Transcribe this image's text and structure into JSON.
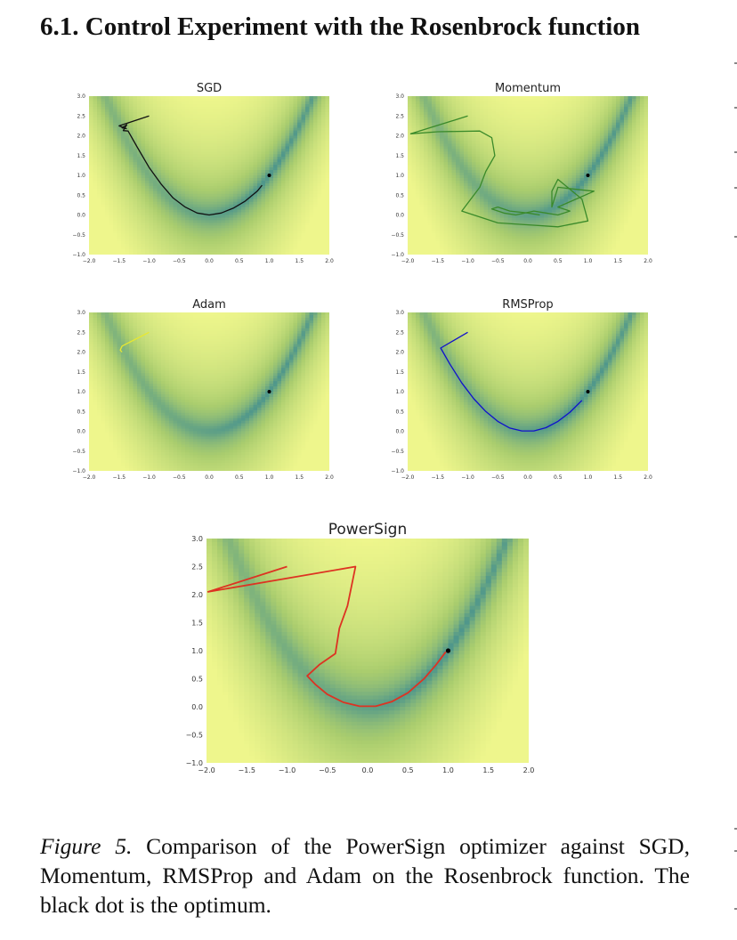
{
  "section": {
    "title": "6.1. Control Experiment with the Rosenbrock function"
  },
  "figure": {
    "caption_lead": "Figure 5.",
    "caption_text": " Comparison of the PowerSign optimizer against SGD, Momentum, RMSProp and Adam on the Rosenbrock function. The black dot is the optimum."
  },
  "chart_data": [
    {
      "type": "line",
      "title": "SGD",
      "color": "#111111",
      "xlim": [
        -2.0,
        2.0
      ],
      "ylim": [
        -1.0,
        3.0
      ],
      "xticks": [
        "−2.0",
        "−1.5",
        "−1.0",
        "−0.5",
        "0.0",
        "0.5",
        "1.0",
        "1.5",
        "2.0"
      ],
      "yticks": [
        "−1.0",
        "−0.5",
        "0.0",
        "0.5",
        "1.0",
        "1.5",
        "2.0",
        "2.5",
        "3.0"
      ],
      "optimum": [
        1.0,
        1.0
      ],
      "x": [
        -1.0,
        -1.5,
        -1.38,
        -1.45,
        -1.37,
        -1.43,
        -1.35,
        -1.2,
        -1.0,
        -0.8,
        -0.6,
        -0.4,
        -0.2,
        0.0,
        0.2,
        0.4,
        0.6,
        0.8,
        0.88
      ],
      "y": [
        2.5,
        2.25,
        2.18,
        2.2,
        2.28,
        2.13,
        2.12,
        1.72,
        1.2,
        0.78,
        0.43,
        0.2,
        0.05,
        0.0,
        0.05,
        0.17,
        0.35,
        0.6,
        0.75
      ]
    },
    {
      "type": "line",
      "title": "Momentum",
      "color": "#3a8a2a",
      "xlim": [
        -2.0,
        2.0
      ],
      "ylim": [
        -1.0,
        3.0
      ],
      "xticks": [
        "−2.0",
        "−1.5",
        "−1.0",
        "−0.5",
        "0.0",
        "0.5",
        "1.0",
        "1.5",
        "2.0"
      ],
      "yticks": [
        "−1.0",
        "−0.5",
        "0.0",
        "0.5",
        "1.0",
        "1.5",
        "2.0",
        "2.5",
        "3.0"
      ],
      "optimum": [
        1.0,
        1.0
      ],
      "x": [
        -1.0,
        -1.95,
        -1.5,
        -0.8,
        -0.6,
        -0.55,
        -0.7,
        -0.8,
        -1.1,
        -0.5,
        0.5,
        1.0,
        0.9,
        0.5,
        0.4,
        0.4,
        0.5,
        1.1,
        0.5,
        0.7,
        0.5,
        0.3,
        0.1,
        -0.2,
        -0.4,
        -0.6,
        -0.5,
        -0.3,
        0.0,
        0.2
      ],
      "y": [
        2.5,
        2.05,
        2.1,
        2.12,
        1.95,
        1.5,
        1.1,
        0.7,
        0.1,
        -0.2,
        -0.3,
        -0.15,
        0.4,
        0.9,
        0.6,
        0.2,
        0.7,
        0.6,
        0.2,
        0.1,
        0.0,
        0.05,
        0.1,
        0.0,
        0.05,
        0.15,
        0.2,
        0.1,
        0.05,
        0.0
      ]
    },
    {
      "type": "line",
      "title": "Adam",
      "color": "#e8e830",
      "xlim": [
        -2.0,
        2.0
      ],
      "ylim": [
        -1.0,
        3.0
      ],
      "xticks": [
        "−2.0",
        "−1.5",
        "−1.0",
        "−0.5",
        "0.0",
        "0.5",
        "1.0",
        "1.5",
        "2.0"
      ],
      "yticks": [
        "−1.0",
        "−0.5",
        "0.0",
        "0.5",
        "1.0",
        "1.5",
        "2.0",
        "2.5",
        "3.0"
      ],
      "optimum": [
        1.0,
        1.0
      ],
      "x": [
        -1.0,
        -1.45,
        -1.48,
        -1.45
      ],
      "y": [
        2.5,
        2.15,
        2.05,
        2.0
      ]
    },
    {
      "type": "line",
      "title": "RMSProp",
      "color": "#1010cc",
      "xlim": [
        -2.0,
        2.0
      ],
      "ylim": [
        -1.0,
        3.0
      ],
      "xticks": [
        "−2.0",
        "−1.5",
        "−1.0",
        "−0.5",
        "0.0",
        "0.5",
        "1.0",
        "1.5",
        "2.0"
      ],
      "yticks": [
        "−1.0",
        "−0.5",
        "0.0",
        "0.5",
        "1.0",
        "1.5",
        "2.0",
        "2.5",
        "3.0"
      ],
      "optimum": [
        1.0,
        1.0
      ],
      "x": [
        -1.0,
        -1.45,
        -1.3,
        -1.1,
        -0.9,
        -0.7,
        -0.5,
        -0.3,
        -0.1,
        0.1,
        0.3,
        0.5,
        0.7,
        0.9
      ],
      "y": [
        2.5,
        2.1,
        1.7,
        1.22,
        0.82,
        0.5,
        0.25,
        0.08,
        0.01,
        0.01,
        0.09,
        0.25,
        0.48,
        0.78
      ]
    },
    {
      "type": "line",
      "title": "PowerSign",
      "color": "#dd3322",
      "xlim": [
        -2.0,
        2.0
      ],
      "ylim": [
        -1.0,
        3.0
      ],
      "xticks": [
        "−2.0",
        "−1.5",
        "−1.0",
        "−0.5",
        "0.0",
        "0.5",
        "1.0",
        "1.5",
        "2.0"
      ],
      "yticks": [
        "−1.0",
        "−0.5",
        "0.0",
        "0.5",
        "1.0",
        "1.5",
        "2.0",
        "2.5",
        "3.0"
      ],
      "optimum": [
        1.0,
        1.0
      ],
      "x": [
        -1.0,
        -1.98,
        -0.15,
        -0.25,
        -0.35,
        -0.4,
        -0.6,
        -0.75,
        -0.65,
        -0.5,
        -0.3,
        -0.1,
        0.1,
        0.3,
        0.5,
        0.7,
        0.85,
        0.97
      ],
      "y": [
        2.5,
        2.05,
        2.5,
        1.8,
        1.4,
        0.95,
        0.75,
        0.55,
        0.4,
        0.22,
        0.08,
        0.01,
        0.01,
        0.09,
        0.25,
        0.5,
        0.75,
        0.98
      ]
    }
  ]
}
